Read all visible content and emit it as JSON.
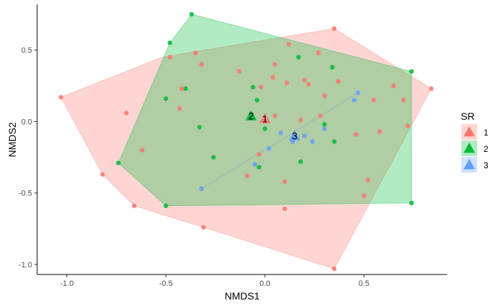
{
  "chart_data": {
    "type": "scatter",
    "xlabel": "NMDS1",
    "ylabel": "NMDS2",
    "xlim": [
      -1.15,
      0.92
    ],
    "ylim": [
      -1.07,
      0.82
    ],
    "xticks": [
      -1.0,
      -0.5,
      0.0,
      0.5
    ],
    "xtick_labels": [
      "-1.0",
      "-0.5",
      "0.0",
      "0.5"
    ],
    "yticks": [
      -1.0,
      -0.5,
      0.0,
      0.5
    ],
    "ytick_labels": [
      "-1.0",
      "-0.5",
      "0.0",
      "0.5"
    ],
    "grid": false,
    "legend": {
      "title": "SR",
      "position": "right",
      "entries": [
        "1",
        "2",
        "3"
      ]
    },
    "colors": {
      "1": "#F8766D",
      "2": "#00BA38",
      "3": "#619CFF"
    },
    "series": [
      {
        "name": "1",
        "color": "#F8766D",
        "hull": [
          [
            -1.03,
            0.17
          ],
          [
            -0.82,
            -0.37
          ],
          [
            -0.66,
            -0.59
          ],
          [
            -0.31,
            -0.74
          ],
          [
            0.35,
            -1.03
          ],
          [
            0.84,
            0.23
          ],
          [
            0.35,
            0.65
          ],
          [
            -0.52,
            0.45
          ]
        ],
        "points": [
          [
            -1.03,
            0.17
          ],
          [
            -0.82,
            -0.37
          ],
          [
            -0.66,
            -0.59
          ],
          [
            -0.31,
            -0.74
          ],
          [
            0.35,
            -1.03
          ],
          [
            0.84,
            0.23
          ],
          [
            0.35,
            0.65
          ],
          [
            -0.7,
            0.06
          ],
          [
            -0.62,
            -0.2
          ],
          [
            0.1,
            -0.61
          ],
          [
            -0.35,
            0.48
          ],
          [
            -0.48,
            0.45
          ],
          [
            -0.42,
            0.23
          ],
          [
            0.05,
            0.4
          ],
          [
            0.12,
            0.54
          ],
          [
            0.27,
            0.48
          ],
          [
            0.04,
            0.31
          ],
          [
            -0.13,
            0.35
          ],
          [
            0.2,
            0.29
          ],
          [
            0.37,
            0.28
          ],
          [
            0.11,
            0.27
          ],
          [
            -0.02,
            0.24
          ],
          [
            0.55,
            0.15
          ],
          [
            0.65,
            0.25
          ],
          [
            0.7,
            0.15
          ],
          [
            0.22,
            0.26
          ],
          [
            0.72,
            -0.03
          ],
          [
            0.58,
            -0.07
          ],
          [
            0.46,
            -0.09
          ],
          [
            0.05,
            0.04
          ],
          [
            0.18,
            0.01
          ],
          [
            0.28,
            0.04
          ],
          [
            -0.43,
            0.09
          ],
          [
            -0.03,
            -0.23
          ],
          [
            -0.09,
            -0.38
          ],
          [
            0.1,
            -0.42
          ],
          [
            0.52,
            -0.41
          ],
          [
            0.5,
            -0.52
          ],
          [
            0.3,
            0.18
          ],
          [
            -0.32,
            0.4
          ]
        ]
      },
      {
        "name": "2",
        "color": "#00BA38",
        "hull": [
          [
            -0.74,
            -0.29
          ],
          [
            -0.5,
            -0.59
          ],
          [
            0.74,
            -0.57
          ],
          [
            0.74,
            0.35
          ],
          [
            -0.37,
            0.75
          ],
          [
            -0.48,
            0.55
          ]
        ],
        "points": [
          [
            -0.74,
            -0.29
          ],
          [
            -0.5,
            -0.59
          ],
          [
            0.74,
            -0.57
          ],
          [
            0.74,
            0.35
          ],
          [
            -0.37,
            0.75
          ],
          [
            -0.48,
            0.55
          ],
          [
            0.17,
            0.45
          ],
          [
            0.34,
            0.38
          ],
          [
            -0.5,
            0.16
          ],
          [
            -0.4,
            0.23
          ],
          [
            -0.06,
            0.24
          ],
          [
            -0.04,
            0.15
          ],
          [
            -0.33,
            -0.04
          ],
          [
            -0.26,
            -0.25
          ],
          [
            0.0,
            -0.05
          ],
          [
            0.18,
            -0.28
          ],
          [
            0.35,
            -0.14
          ],
          [
            0.3,
            -0.02
          ],
          [
            -0.03,
            -0.32
          ]
        ]
      },
      {
        "name": "3",
        "color": "#619CFF",
        "hull": [
          [
            -0.32,
            -0.47
          ],
          [
            0.47,
            0.2
          ]
        ],
        "points": [
          [
            -0.32,
            -0.47
          ],
          [
            0.47,
            0.2
          ],
          [
            0.45,
            0.15
          ],
          [
            0.3,
            -0.05
          ],
          [
            0.24,
            -0.14
          ],
          [
            0.08,
            -0.08
          ],
          [
            0.02,
            -0.19
          ],
          [
            -0.05,
            -0.3
          ],
          [
            0.14,
            -0.14
          ],
          [
            0.2,
            -0.1
          ]
        ]
      }
    ],
    "centroids": [
      {
        "label": "1",
        "x": 0.0,
        "y": 0.02,
        "color": "#F8766D"
      },
      {
        "label": "2",
        "x": -0.07,
        "y": 0.04,
        "color": "#00BA38"
      },
      {
        "label": "3",
        "x": 0.15,
        "y": -0.1,
        "color": "#619CFF"
      }
    ]
  }
}
